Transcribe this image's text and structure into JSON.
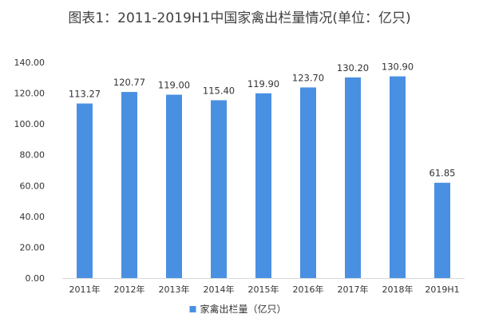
{
  "chart_data": {
    "type": "bar",
    "title": "图表1：2011-2019H1中国家禽出栏量情况(单位：亿只)",
    "categories": [
      "2011年",
      "2012年",
      "2013年",
      "2014年",
      "2015年",
      "2016年",
      "2017年",
      "2018年",
      "2019H1"
    ],
    "series": [
      {
        "name": "家禽出栏量（亿只）",
        "values": [
          113.27,
          120.77,
          119.0,
          115.4,
          119.9,
          123.7,
          130.2,
          130.9,
          61.85
        ],
        "data_labels": [
          "113.27",
          "120.77",
          "119.00",
          "115.40",
          "119.90",
          "123.70",
          "130.20",
          "130.90",
          "61.85"
        ]
      }
    ],
    "yticks": [
      "0.00",
      "20.00",
      "40.00",
      "60.00",
      "80.00",
      "100.00",
      "120.00",
      "140.00"
    ],
    "ylim": [
      0,
      140
    ],
    "grid": false,
    "legend_position": "bottom",
    "colors": {
      "bar": "#4a90e2"
    }
  }
}
